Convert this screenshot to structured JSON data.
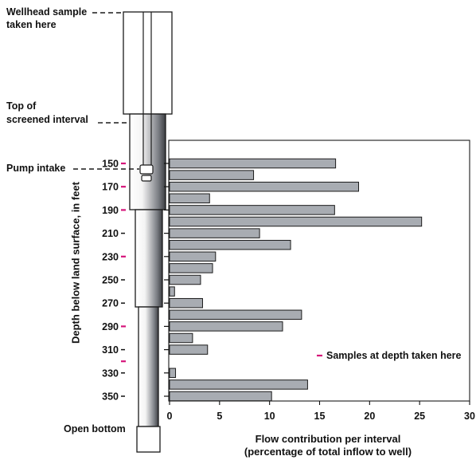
{
  "colors": {
    "bar_fill": "#a8acb2",
    "bar_stroke": "#1a1a1a",
    "sample_marker": "#d6147a",
    "text": "#111111"
  },
  "annotations": {
    "wellhead": "Wellhead sample",
    "wellhead_line2": "taken here",
    "top_screen": "Top of",
    "top_screen_line2": "screened interval",
    "pump_intake": "Pump intake",
    "open_bottom": "Open bottom"
  },
  "legend": {
    "samples_label": "Samples at depth taken here"
  },
  "axes": {
    "ylabel": "Depth below land surface, in feet",
    "xlabel_line1": "Flow contribution per interval",
    "xlabel_line2": "(percentage of total inflow to well)"
  },
  "chart_data": {
    "type": "bar",
    "orientation": "horizontal",
    "x_range": [
      0,
      30
    ],
    "x_ticks": [
      0,
      5,
      10,
      15,
      20,
      25,
      30
    ],
    "x_tick_labels": [
      "0",
      "5",
      "10",
      "15",
      "20",
      "25",
      "30"
    ],
    "y_range_depth_ft": [
      145,
      355
    ],
    "y_ticks": [
      150,
      170,
      190,
      210,
      230,
      250,
      270,
      290,
      310,
      330,
      350
    ],
    "y_tick_labels": [
      "150",
      "170",
      "190",
      "210",
      "230",
      "250",
      "270",
      "290",
      "310",
      "330",
      "350"
    ],
    "sample_depths_ft": [
      150,
      170,
      190,
      230,
      290,
      320
    ],
    "bars": [
      {
        "depth_ft": 150,
        "value": 16.6
      },
      {
        "depth_ft": 160,
        "value": 8.4
      },
      {
        "depth_ft": 170,
        "value": 18.9
      },
      {
        "depth_ft": 180,
        "value": 4.0
      },
      {
        "depth_ft": 190,
        "value": 16.5
      },
      {
        "depth_ft": 200,
        "value": 25.2
      },
      {
        "depth_ft": 210,
        "value": 9.0
      },
      {
        "depth_ft": 220,
        "value": 12.1
      },
      {
        "depth_ft": 230,
        "value": 4.6
      },
      {
        "depth_ft": 240,
        "value": 4.3
      },
      {
        "depth_ft": 250,
        "value": 3.1
      },
      {
        "depth_ft": 260,
        "value": 0.5
      },
      {
        "depth_ft": 270,
        "value": 3.3
      },
      {
        "depth_ft": 280,
        "value": 13.2
      },
      {
        "depth_ft": 290,
        "value": 11.3
      },
      {
        "depth_ft": 300,
        "value": 2.3
      },
      {
        "depth_ft": 310,
        "value": 3.8
      },
      {
        "depth_ft": 320,
        "value": 0.0
      },
      {
        "depth_ft": 330,
        "value": 0.6
      },
      {
        "depth_ft": 340,
        "value": 13.8
      },
      {
        "depth_ft": 350,
        "value": 10.2
      }
    ]
  }
}
